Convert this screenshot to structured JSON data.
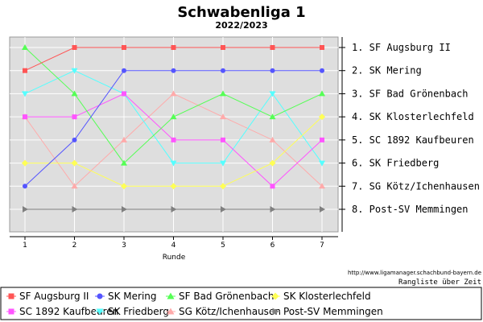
{
  "chart_data": {
    "type": "line",
    "title": "Schwabenliga 1",
    "subtitle": "2022/2023",
    "xlabel": "Runde",
    "x": [
      1,
      2,
      3,
      4,
      5,
      6,
      7
    ],
    "ylim": [
      1,
      8
    ],
    "y_inverted": true,
    "grid": true,
    "legend_position": "bottom",
    "right_labels": [
      "1. SF Augsburg II",
      "2. SK Mering",
      "3. SF Bad Grönenbach",
      "4. SK Klosterlechfeld",
      "5. SC 1892 Kaufbeuren",
      "6. SK Friedberg",
      "7. SG Kötz/Ichenhausen",
      "8. Post-SV Memmingen"
    ],
    "source_url": "http://www.ligamanager.schachbund-bayern.de",
    "footer_note": "Rangliste über Zeit",
    "series": [
      {
        "name": "SF Augsburg II",
        "color": "#ff5555",
        "marker": "square",
        "values": [
          2,
          1,
          1,
          1,
          1,
          1,
          1
        ]
      },
      {
        "name": "SK Mering",
        "color": "#5555ff",
        "marker": "circle",
        "values": [
          7,
          5,
          2,
          2,
          2,
          2,
          2
        ]
      },
      {
        "name": "SF Bad Grönenbach",
        "color": "#55ff55",
        "marker": "triangle-up",
        "values": [
          1,
          3,
          6,
          4,
          3,
          4,
          3
        ]
      },
      {
        "name": "SK Klosterlechfeld",
        "color": "#ffff55",
        "marker": "diamond",
        "values": [
          6,
          6,
          7,
          7,
          7,
          6,
          4
        ]
      },
      {
        "name": "SC 1892 Kaufbeuren",
        "color": "#ff55ff",
        "marker": "square",
        "values": [
          4,
          4,
          3,
          5,
          5,
          7,
          5
        ]
      },
      {
        "name": "SK Friedberg",
        "color": "#55ffff",
        "marker": "triangle-down",
        "values": [
          3,
          2,
          3,
          6,
          6,
          3,
          6
        ]
      },
      {
        "name": "SG Kötz/Ichenhausen",
        "color": "#ffaaaa",
        "marker": "triangle-up",
        "values": [
          4,
          7,
          5,
          3,
          4,
          5,
          7
        ]
      },
      {
        "name": "Post-SV Memmingen",
        "color": "#808080",
        "marker": "triangle-right",
        "values": [
          8,
          8,
          8,
          8,
          8,
          8,
          8
        ]
      }
    ]
  }
}
